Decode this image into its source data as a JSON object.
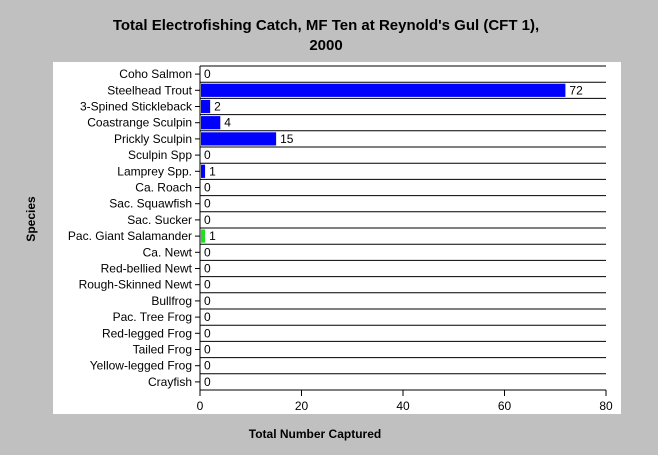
{
  "chart_data": {
    "type": "bar",
    "orientation": "horizontal",
    "title_line1": "Total Electrofishing Catch, MF Ten at Reynold's Gul (CFT 1),",
    "title_line2": "2000",
    "xlabel": "Total Number Captured",
    "ylabel": "Species",
    "xlim": [
      0,
      80
    ],
    "xticks": [
      0,
      20,
      40,
      60,
      80
    ],
    "grid": "horizontal separator lines",
    "categories": [
      "Coho Salmon",
      "Steelhead Trout",
      "3-Spined Stickleback",
      "Coastrange Sculpin",
      "Prickly Sculpin",
      "Sculpin Spp",
      "Lamprey Spp.",
      "Ca. Roach",
      "Sac. Squawfish",
      "Sac. Sucker",
      "Pac. Giant Salamander",
      "Ca. Newt",
      "Red-bellied Newt",
      "Rough-Skinned Newt",
      "Bullfrog",
      "Pac. Tree Frog",
      "Red-legged Frog",
      "Tailed Frog",
      "Yellow-legged Frog",
      "Crayfish"
    ],
    "values": [
      0,
      72,
      2,
      4,
      15,
      0,
      1,
      0,
      0,
      0,
      1,
      0,
      0,
      0,
      0,
      0,
      0,
      0,
      0,
      0
    ],
    "bar_colors": [
      "#0000ff",
      "#0000ff",
      "#0000ff",
      "#0000ff",
      "#0000ff",
      "#0000ff",
      "#0000ff",
      "#0000ff",
      "#0000ff",
      "#0000ff",
      "#22dd22",
      "#0000ff",
      "#0000ff",
      "#0000ff",
      "#0000ff",
      "#0000ff",
      "#0000ff",
      "#0000ff",
      "#0000ff",
      "#0000ff"
    ]
  }
}
